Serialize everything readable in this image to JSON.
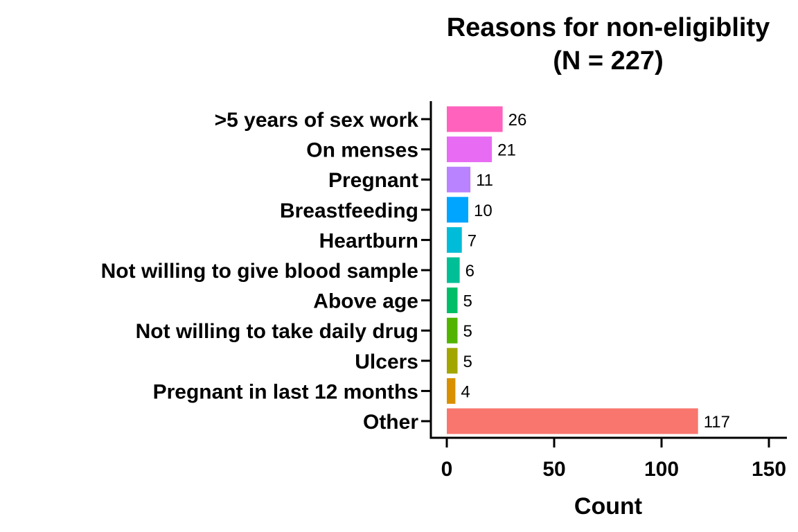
{
  "chart_data": {
    "type": "bar",
    "orientation": "horizontal",
    "title": "Reasons for non-eligiblity",
    "subtitle": "(N = 227)",
    "xlabel": "Count",
    "ylabel": "",
    "xlim": [
      0,
      150
    ],
    "xticks": [
      0,
      50,
      100,
      150
    ],
    "grid": false,
    "legend": "none",
    "categories": [
      ">5 years of sex work",
      "On menses",
      "Pregnant",
      "Breastfeeding",
      "Heartburn",
      "Not willing to give blood sample",
      "Above age",
      "Not willing to take daily drug",
      "Ulcers",
      "Pregnant in last 12 months",
      "Other"
    ],
    "values": [
      26,
      21,
      11,
      10,
      7,
      6,
      5,
      5,
      5,
      4,
      117
    ],
    "colors": [
      "#FF62BC",
      "#E76BF3",
      "#B983FF",
      "#00A5FF",
      "#00BCD8",
      "#00BF96",
      "#00BE67",
      "#53B400",
      "#A3A500",
      "#D89000",
      "#F8766D"
    ]
  }
}
